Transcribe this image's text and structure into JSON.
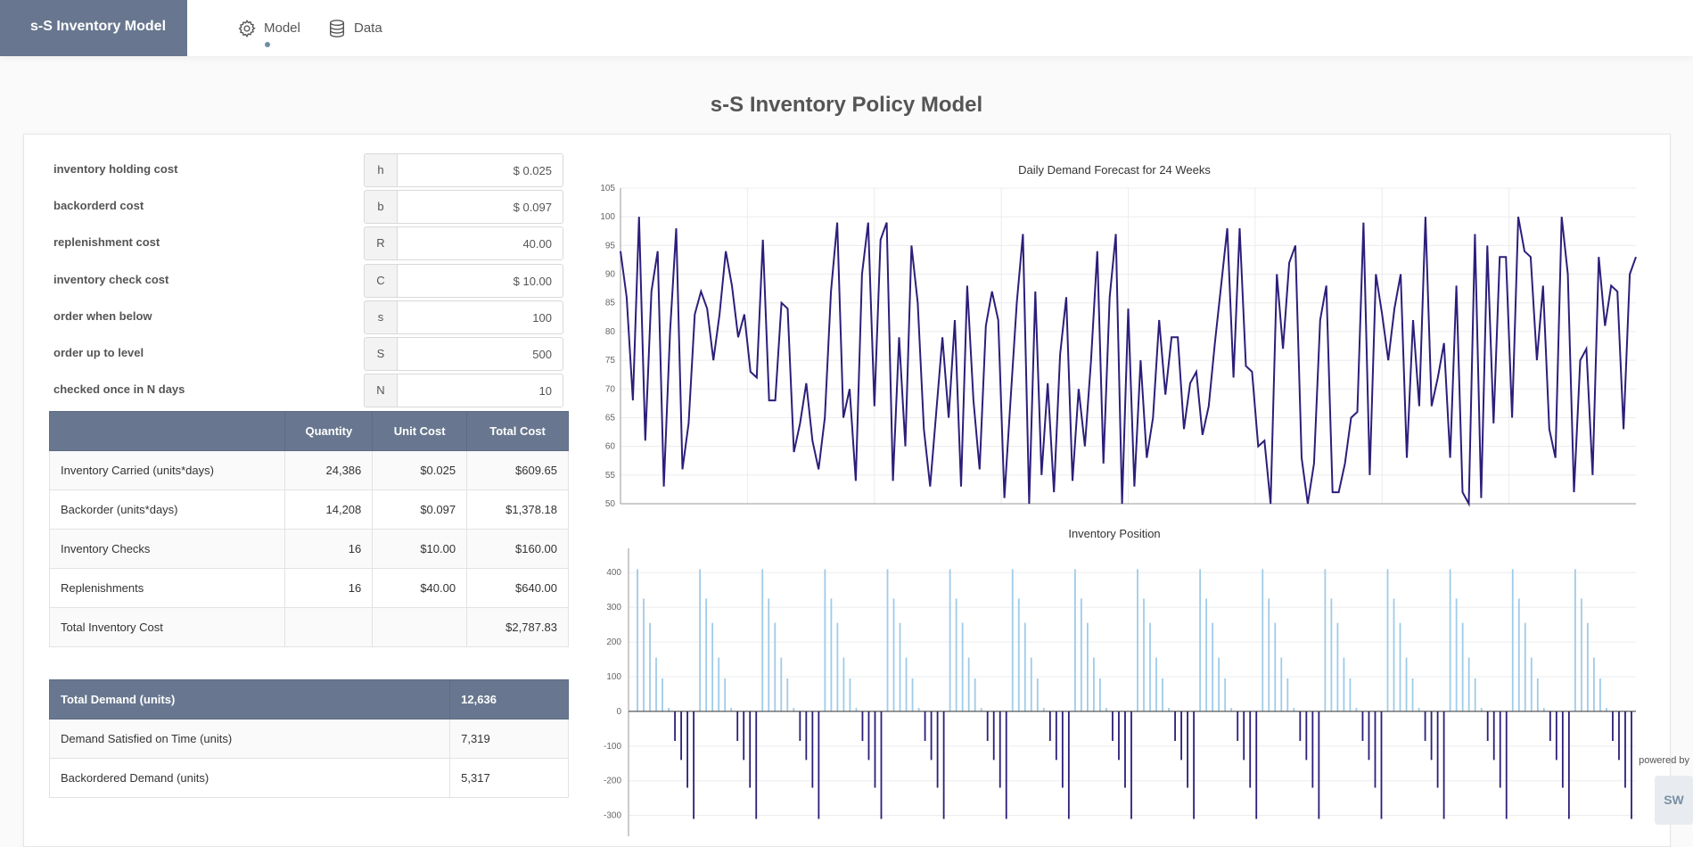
{
  "app": {
    "brand": "s-S Inventory Model",
    "nav": [
      {
        "label": "Model",
        "icon": "gear-icon",
        "active": true
      },
      {
        "label": "Data",
        "icon": "database-icon",
        "active": false
      }
    ]
  },
  "page": {
    "title": "s-S Inventory Policy Model"
  },
  "params": [
    {
      "label": "inventory holding cost",
      "symbol": "h",
      "value": "$ 0.025"
    },
    {
      "label": "backorderd cost",
      "symbol": "b",
      "value": "$ 0.097"
    },
    {
      "label": "replenishment cost",
      "symbol": "R",
      "value": "40.00"
    },
    {
      "label": "inventory check cost",
      "symbol": "C",
      "value": "$ 10.00"
    },
    {
      "label": "order when below",
      "symbol": "s",
      "value": "100"
    },
    {
      "label": "order up to level",
      "symbol": "S",
      "value": "500"
    },
    {
      "label": "checked once in N days",
      "symbol": "N",
      "value": "10"
    }
  ],
  "cost_table": {
    "headers": [
      "",
      "Quantity",
      "Unit Cost",
      "Total Cost"
    ],
    "rows": [
      [
        "Inventory Carried (units*days)",
        "24,386",
        "$0.025",
        "$609.65"
      ],
      [
        "Backorder (units*days)",
        "14,208",
        "$0.097",
        "$1,378.18"
      ],
      [
        "Inventory Checks",
        "16",
        "$10.00",
        "$160.00"
      ],
      [
        "Replenishments",
        "16",
        "$40.00",
        "$640.00"
      ],
      [
        "Total Inventory Cost",
        "",
        "",
        "$2,787.83"
      ]
    ]
  },
  "demand_table": {
    "header": [
      "Total Demand (units)",
      "12,636"
    ],
    "rows": [
      [
        "Demand Satisfied on Time (units)",
        "7,319"
      ],
      [
        "Backordered Demand (units)",
        "5,317"
      ]
    ]
  },
  "footer": {
    "powered_by": "powered by",
    "logo": "SW"
  },
  "chart_data": [
    {
      "type": "line",
      "title": "Daily Demand Forecast for 24 Weeks",
      "ylim": [
        50,
        105
      ],
      "yticks": [
        50,
        55,
        60,
        65,
        70,
        75,
        80,
        85,
        90,
        95,
        100,
        105
      ],
      "grid": true,
      "color": "#2b1f7a",
      "values": [
        94,
        86,
        68,
        100,
        61,
        87,
        94,
        53,
        80,
        98,
        56,
        64,
        83,
        87,
        84,
        75,
        83,
        94,
        88,
        79,
        83,
        73,
        72,
        96,
        68,
        68,
        85,
        84,
        59,
        64,
        71,
        61,
        56,
        65,
        87,
        99,
        65,
        70,
        54,
        90,
        99,
        67,
        96,
        99,
        54,
        79,
        60,
        95,
        85,
        63,
        53,
        66,
        79,
        65,
        82,
        53,
        88,
        68,
        56,
        81,
        87,
        82,
        51,
        68,
        85,
        97,
        50,
        87,
        55,
        71,
        52,
        76,
        86,
        54,
        70,
        60,
        75,
        94,
        57,
        86,
        97,
        50,
        84,
        53,
        75,
        58,
        65,
        82,
        69,
        79,
        79,
        63,
        71,
        73,
        62,
        67,
        78,
        88,
        98,
        72,
        98,
        74,
        73,
        60,
        61,
        50,
        90,
        77,
        92,
        95,
        58,
        50,
        57,
        82,
        88,
        52,
        52,
        57,
        65,
        66,
        99,
        55,
        90,
        83,
        75,
        84,
        90,
        58,
        82,
        67,
        100,
        67,
        72,
        78,
        58,
        88,
        52,
        50,
        97,
        51,
        95,
        64,
        93,
        93,
        65,
        100,
        94,
        93,
        75,
        88,
        63,
        58,
        100,
        90,
        52,
        75,
        77,
        55,
        93,
        81,
        88,
        87,
        63,
        90,
        93
      ]
    },
    {
      "type": "bar",
      "title": "Inventory Position",
      "ylim": [
        -360,
        470
      ],
      "yticks": [
        -300,
        -200,
        -100,
        0,
        100,
        200,
        300,
        400
      ],
      "grid": true,
      "positive_color": "#9fcbe8",
      "negative_color": "#2b1f7a",
      "cycle_values": [
        410,
        325,
        255,
        155,
        95,
        10,
        -85,
        -140,
        -220,
        -310
      ],
      "cycles": 16
    }
  ]
}
